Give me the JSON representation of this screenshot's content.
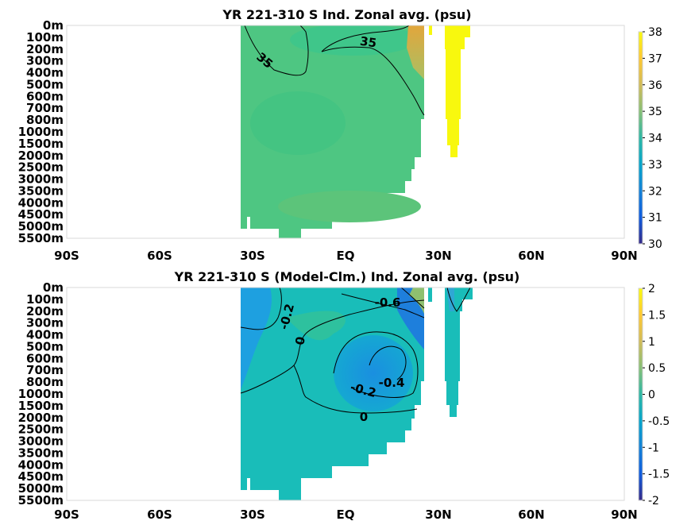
{
  "chart_data": [
    {
      "type": "heatmap",
      "title": "YR 221-310 S Ind. Zonal avg. (psu)",
      "x_ticks": [
        "90S",
        "60S",
        "30S",
        "EQ",
        "30N",
        "60N",
        "90N"
      ],
      "x_tick_values": [
        -90,
        -60,
        -30,
        0,
        30,
        60,
        90
      ],
      "xlim": [
        -90,
        90
      ],
      "y_ticks": [
        "0m",
        "100m",
        "200m",
        "300m",
        "400m",
        "500m",
        "600m",
        "700m",
        "800m",
        "1000m",
        "1500m",
        "2000m",
        "2500m",
        "3000m",
        "3500m",
        "4000m",
        "4500m",
        "5000m",
        "5500m"
      ],
      "colorbar": {
        "ticks": [
          "38",
          "37",
          "36",
          "35",
          "34",
          "33",
          "32",
          "31",
          "30"
        ],
        "range": [
          30,
          38
        ]
      },
      "contour_labels": [
        {
          "text": "35",
          "lat": 7,
          "depth": "150m"
        },
        {
          "text": "35",
          "lat": -27,
          "depth": "300m"
        }
      ],
      "cross_section_values": [
        {
          "lat": -35,
          "depth": "0m",
          "value": 34.6
        },
        {
          "lat": -20,
          "depth": "500m",
          "value": 34.5
        },
        {
          "lat": 0,
          "depth": "1000m",
          "value": 34.7
        },
        {
          "lat": 20,
          "depth": "2000m",
          "value": 34.8
        },
        {
          "lat": 22,
          "depth": "200m",
          "value": 36.0
        },
        {
          "lat": 33,
          "depth": "200m",
          "value": 38.0
        }
      ]
    },
    {
      "type": "heatmap",
      "title": "YR 221-310 S (Model-Clm.) Ind. Zonal avg. (psu)",
      "x_ticks": [
        "90S",
        "60S",
        "30S",
        "EQ",
        "30N",
        "60N",
        "90N"
      ],
      "x_tick_values": [
        -90,
        -60,
        -30,
        0,
        30,
        60,
        90
      ],
      "xlim": [
        -90,
        90
      ],
      "y_ticks": [
        "0m",
        "100m",
        "200m",
        "300m",
        "400m",
        "500m",
        "600m",
        "700m",
        "800m",
        "1000m",
        "1500m",
        "2000m",
        "2500m",
        "3000m",
        "3500m",
        "4000m",
        "4500m",
        "5000m",
        "5500m"
      ],
      "colorbar": {
        "ticks": [
          "2",
          "1.5",
          "1",
          "0.5",
          "0",
          "-0.5",
          "-1",
          "-1.5",
          "-2"
        ],
        "range": [
          -2,
          2
        ]
      },
      "contour_labels": [
        {
          "text": "-0.2",
          "lat": -23,
          "depth": "300m"
        },
        {
          "text": "0",
          "lat": -18,
          "depth": "600m"
        },
        {
          "text": "-0.6",
          "lat": 15,
          "depth": "100m"
        },
        {
          "text": "-0.4",
          "lat": 17,
          "depth": "900m"
        },
        {
          "text": "-0.2",
          "lat": 5,
          "depth": "1000m"
        },
        {
          "text": "0",
          "lat": 6,
          "depth": "1500m"
        }
      ],
      "cross_section_values": [
        {
          "lat": -33,
          "depth": "200m",
          "value": -0.5
        },
        {
          "lat": -10,
          "depth": "2000m",
          "value": 0.0
        },
        {
          "lat": 15,
          "depth": "700m",
          "value": -0.4
        },
        {
          "lat": 20,
          "depth": "200m",
          "value": 0.3
        }
      ]
    }
  ]
}
